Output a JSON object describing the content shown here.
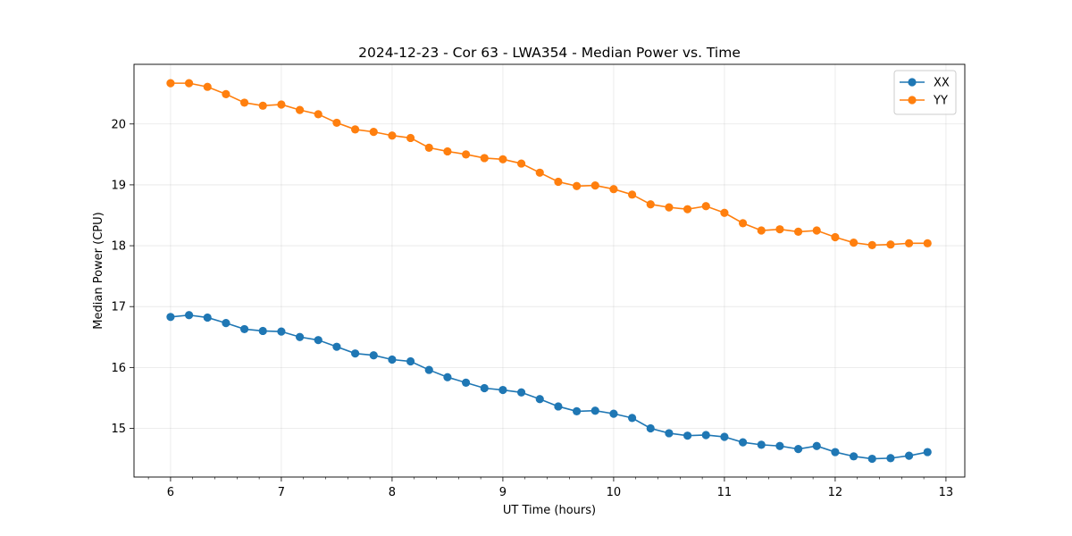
{
  "chart_data": {
    "type": "line",
    "title": "2024-12-23 - Cor 63 - LWA354 - Median Power vs. Time",
    "xlabel": "UT Time (hours)",
    "ylabel": "Median Power (CPU)",
    "xlim": [
      5.67,
      13.17
    ],
    "ylim": [
      14.2,
      20.98
    ],
    "xticks": [
      6,
      7,
      8,
      9,
      10,
      11,
      12,
      13
    ],
    "yticks": [
      15,
      16,
      17,
      18,
      19,
      20
    ],
    "xtick_labels": [
      "6",
      "7",
      "8",
      "9",
      "10",
      "11",
      "12",
      "13"
    ],
    "ytick_labels": [
      "15",
      "16",
      "17",
      "18",
      "19",
      "20"
    ],
    "grid": true,
    "legend_position": "top-right",
    "x": [
      6.0,
      6.1667,
      6.3333,
      6.5,
      6.6667,
      6.8333,
      7.0,
      7.1667,
      7.3333,
      7.5,
      7.6667,
      7.8333,
      8.0,
      8.1667,
      8.3333,
      8.5,
      8.6667,
      8.8333,
      9.0,
      9.1667,
      9.3333,
      9.5,
      9.6667,
      9.8333,
      10.0,
      10.1667,
      10.3333,
      10.5,
      10.6667,
      10.8333,
      11.0,
      11.1667,
      11.3333,
      11.5,
      11.6667,
      11.8333,
      12.0,
      12.1667,
      12.3333,
      12.5,
      12.6667,
      12.8333
    ],
    "series": [
      {
        "name": "XX",
        "color": "#1f77b4",
        "values": [
          16.83,
          16.86,
          16.82,
          16.73,
          16.63,
          16.6,
          16.59,
          16.5,
          16.45,
          16.34,
          16.23,
          16.2,
          16.13,
          16.1,
          15.96,
          15.84,
          15.75,
          15.66,
          15.63,
          15.59,
          15.48,
          15.36,
          15.28,
          15.29,
          15.24,
          15.17,
          15.0,
          14.92,
          14.88,
          14.89,
          14.86,
          14.77,
          14.73,
          14.71,
          14.66,
          14.71,
          14.61,
          14.54,
          14.5,
          14.51,
          14.55,
          14.61
        ]
      },
      {
        "name": "YY",
        "color": "#ff7f0e",
        "values": [
          20.67,
          20.67,
          20.61,
          20.49,
          20.35,
          20.3,
          20.32,
          20.23,
          20.16,
          20.02,
          19.91,
          19.87,
          19.81,
          19.77,
          19.61,
          19.55,
          19.5,
          19.44,
          19.42,
          19.35,
          19.2,
          19.05,
          18.98,
          18.99,
          18.93,
          18.84,
          18.68,
          18.63,
          18.6,
          18.65,
          18.54,
          18.37,
          18.25,
          18.27,
          18.23,
          18.25,
          18.14,
          18.05,
          18.01,
          18.02,
          18.04,
          18.04
        ]
      }
    ]
  }
}
